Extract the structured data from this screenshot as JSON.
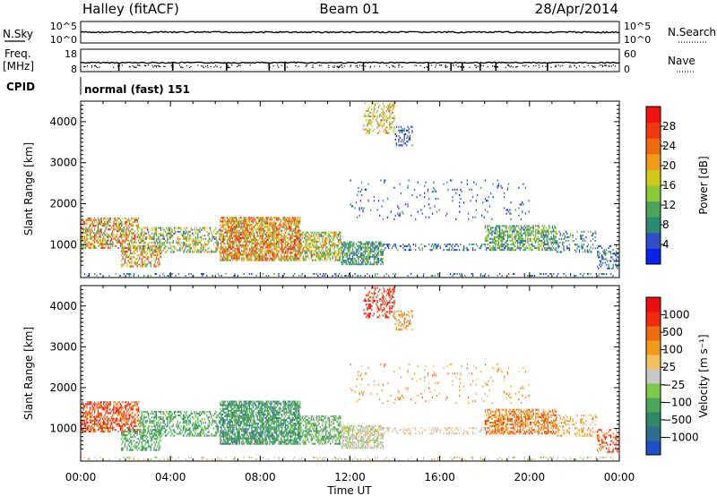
{
  "header": {
    "station": "Halley (fitACF)",
    "beam": "Beam 01",
    "date": "28/Apr/2014"
  },
  "strips": {
    "nsky": {
      "left_label": "N.Sky",
      "right_label": "N.Search",
      "left_ticks": [
        "10^5",
        "10^0"
      ],
      "right_ticks": [
        "10^5",
        "10^0"
      ]
    },
    "freq": {
      "left_label": "Freq.",
      "left_unit": "[MHz]",
      "left_ticks": [
        "18",
        "8"
      ],
      "right_label": "Nave",
      "right_ticks": [
        "60",
        "0"
      ]
    },
    "cpid": {
      "label": "CPID",
      "mode_text": "normal (fast) 151"
    }
  },
  "chart_data": [
    {
      "type": "heatmap",
      "name": "power",
      "ylabel": "Slant Range [km]",
      "yticks": [
        1000,
        2000,
        3000,
        4000
      ],
      "ylim": [
        200,
        4500
      ],
      "xlim": [
        0,
        24
      ],
      "colorbar": {
        "label": "Power [dB]",
        "ticks": [
          "4",
          "8",
          "12",
          "16",
          "20",
          "24",
          "28"
        ],
        "colors": [
          "#0a22ee",
          "#2f4fc8",
          "#2c8a72",
          "#4aa55a",
          "#8cc83a",
          "#d2c81c",
          "#f29a1a",
          "#f06a10",
          "#f2380e",
          "#f21010"
        ]
      }
    },
    {
      "type": "heatmap",
      "name": "velocity",
      "ylabel": "Slant Range [km]",
      "yticks": [
        1000,
        2000,
        3000,
        4000
      ],
      "ylim": [
        200,
        4500
      ],
      "xlim": [
        0,
        24
      ],
      "xlabel": "Time UT",
      "xticks": [
        "00:00",
        "04:00",
        "08:00",
        "12:00",
        "16:00",
        "20:00",
        "00:00"
      ],
      "colorbar": {
        "label": "Velocity [m s⁻¹]",
        "ticks": [
          "1000",
          "500",
          "100",
          "25",
          "−25",
          "−100",
          "−500",
          "−1000"
        ],
        "colors": [
          "#2050c8",
          "#2e6e8e",
          "#2e8a66",
          "#4aa65a",
          "#7cc84a",
          "#c8c8c8",
          "#f2c060",
          "#f29a1a",
          "#f06a10",
          "#f02a0a",
          "#ee1010"
        ]
      }
    }
  ]
}
